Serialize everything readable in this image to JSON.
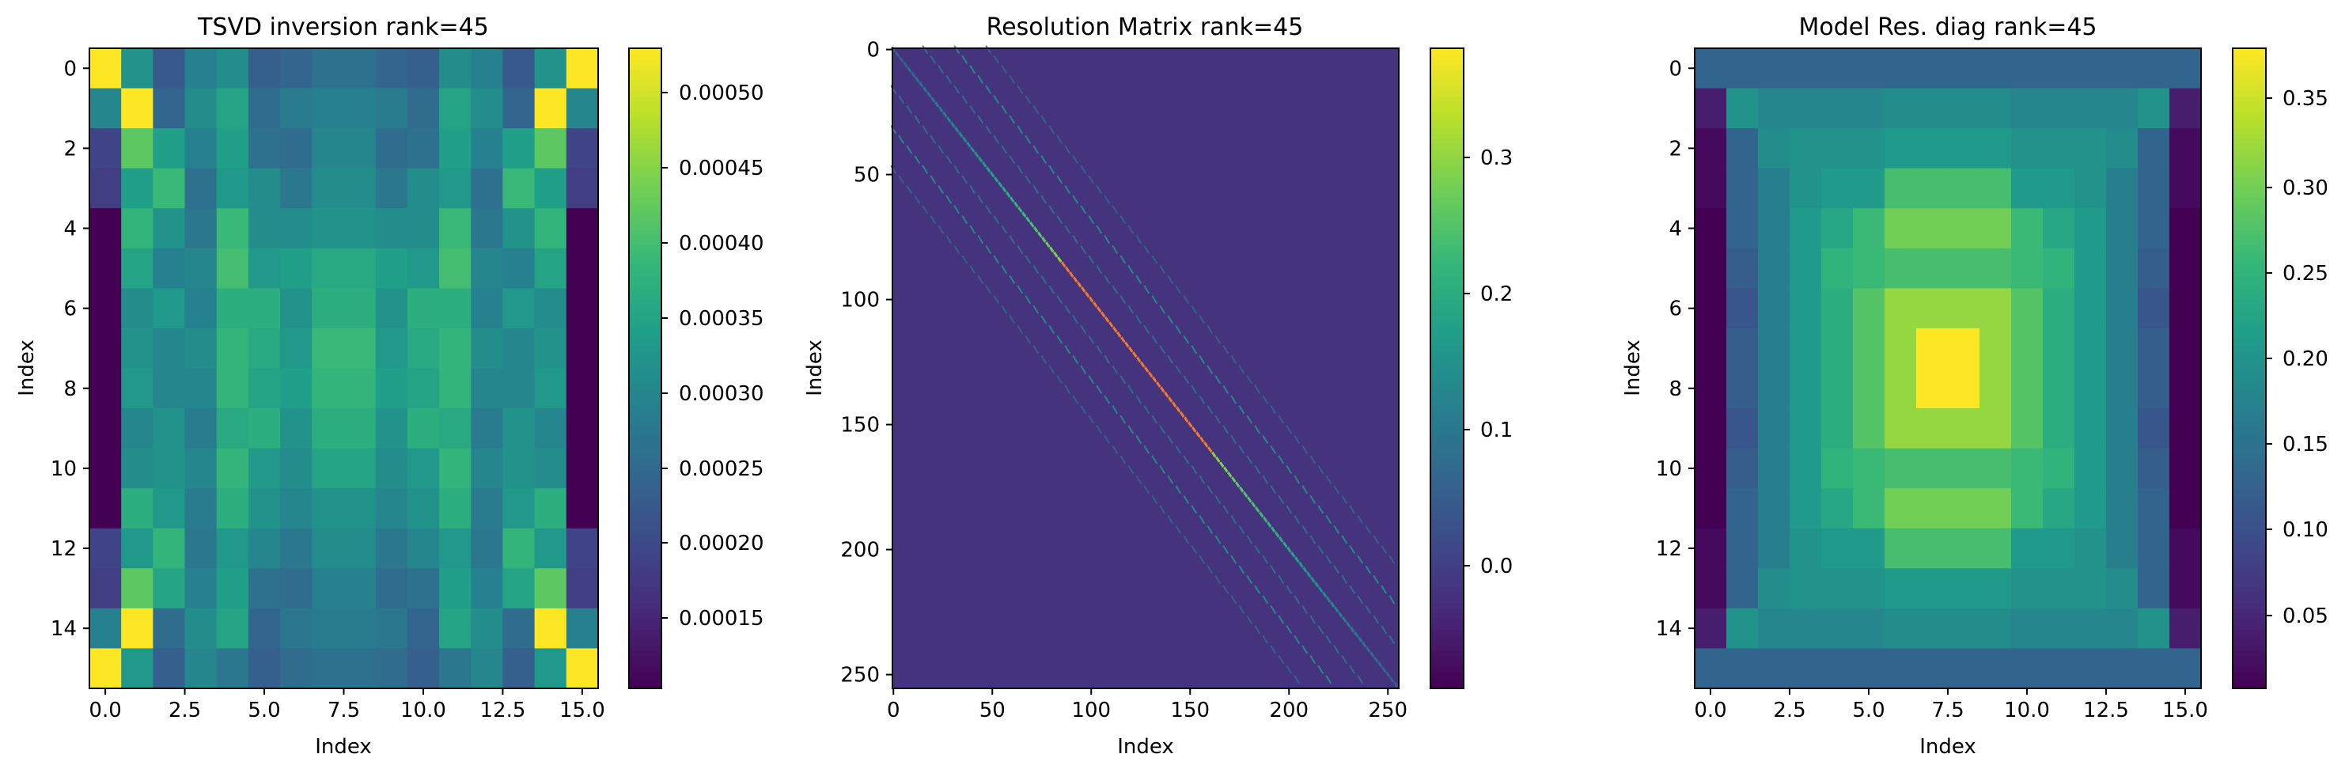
{
  "figure": {
    "panels": [
      {
        "title": "TSVD inversion rank=45",
        "xlabel": "Index",
        "ylabel": "Index",
        "colorbar_ticks": [
          "0.00050",
          "0.00045",
          "0.00040",
          "0.00035",
          "0.00030",
          "0.00025",
          "0.00020",
          "0.00015"
        ]
      },
      {
        "title": "Resolution Matrix rank=45",
        "xlabel": "Index",
        "ylabel": "Index",
        "colorbar_ticks": [
          "0.3",
          "0.2",
          "0.1",
          "0.0"
        ]
      },
      {
        "title": "Model Res. diag rank=45",
        "xlabel": "Index",
        "ylabel": "Index",
        "colorbar_ticks": [
          "0.35",
          "0.30",
          "0.25",
          "0.20",
          "0.15",
          "0.10",
          "0.05"
        ]
      }
    ]
  },
  "chart_data": [
    {
      "type": "heatmap",
      "title": "TSVD inversion rank=45",
      "xlabel": "Index",
      "ylabel": "Index",
      "shape": [
        16,
        16
      ],
      "xlim": [
        -0.5,
        15.5
      ],
      "ylim": [
        15.5,
        -0.5
      ],
      "xticks": [
        0.0,
        2.5,
        5.0,
        7.5,
        10.0,
        12.5,
        15.0
      ],
      "xtick_labels": [
        "0.0",
        "2.5",
        "5.0",
        "7.5",
        "10.0",
        "12.5",
        "15.0"
      ],
      "yticks": [
        0,
        2,
        4,
        6,
        8,
        10,
        12,
        14
      ],
      "ytick_labels": [
        "0",
        "2",
        "4",
        "6",
        "8",
        "10",
        "12",
        "14"
      ],
      "colormap": "viridis",
      "vmin": 0.0001,
      "vmax": 0.00053,
      "colorbar_ticks": [
        0.0005,
        0.00045,
        0.0004,
        0.00035,
        0.0003,
        0.00025,
        0.0002,
        0.00015
      ],
      "values": [
        [
          0.00053,
          0.00032,
          0.00022,
          0.00029,
          0.00031,
          0.00023,
          0.00024,
          0.00026,
          0.00026,
          0.00024,
          0.00023,
          0.00031,
          0.00029,
          0.00022,
          0.00032,
          0.00053
        ],
        [
          0.0003,
          0.00053,
          0.00024,
          0.00031,
          0.00035,
          0.00025,
          0.00028,
          0.00029,
          0.00029,
          0.00028,
          0.00025,
          0.00035,
          0.00031,
          0.00024,
          0.00053,
          0.0003
        ],
        [
          0.00019,
          0.00042,
          0.00034,
          0.00029,
          0.00034,
          0.00026,
          0.00025,
          0.0003,
          0.0003,
          0.00025,
          0.00026,
          0.00034,
          0.00029,
          0.00034,
          0.00042,
          0.00019
        ],
        [
          0.00018,
          0.00034,
          0.00039,
          0.00026,
          0.00033,
          0.00031,
          0.00027,
          0.00031,
          0.00031,
          0.00027,
          0.00031,
          0.00033,
          0.00026,
          0.00039,
          0.00034,
          0.00018
        ],
        [
          0.0001,
          0.00038,
          0.00032,
          0.00027,
          0.00039,
          0.00031,
          0.00031,
          0.00032,
          0.00032,
          0.00031,
          0.00031,
          0.00039,
          0.00027,
          0.00032,
          0.00038,
          0.0001
        ],
        [
          0.0001,
          0.00035,
          0.00029,
          0.0003,
          0.0004,
          0.00033,
          0.00034,
          0.00036,
          0.00036,
          0.00034,
          0.00033,
          0.0004,
          0.0003,
          0.00029,
          0.00035,
          0.0001
        ],
        [
          0.0001,
          0.00031,
          0.00033,
          0.00029,
          0.00037,
          0.00037,
          0.00032,
          0.00037,
          0.00037,
          0.00032,
          0.00037,
          0.00037,
          0.00029,
          0.00033,
          0.00031,
          0.0001
        ],
        [
          0.0001,
          0.00032,
          0.0003,
          0.00031,
          0.00038,
          0.00036,
          0.00033,
          0.00039,
          0.00039,
          0.00033,
          0.00036,
          0.00038,
          0.00031,
          0.0003,
          0.00032,
          0.0001
        ],
        [
          0.0001,
          0.00033,
          0.0003,
          0.0003,
          0.00038,
          0.00035,
          0.00034,
          0.00038,
          0.00038,
          0.00034,
          0.00035,
          0.00038,
          0.0003,
          0.0003,
          0.00033,
          0.0001
        ],
        [
          0.0001,
          0.0003,
          0.00032,
          0.00028,
          0.00036,
          0.00037,
          0.00032,
          0.00037,
          0.00037,
          0.00032,
          0.00037,
          0.00036,
          0.00028,
          0.00032,
          0.0003,
          0.0001
        ],
        [
          0.0001,
          0.00031,
          0.00032,
          0.0003,
          0.00038,
          0.00033,
          0.00031,
          0.00035,
          0.00035,
          0.00031,
          0.00033,
          0.00038,
          0.0003,
          0.00032,
          0.00031,
          0.0001
        ],
        [
          0.0001,
          0.00037,
          0.00033,
          0.00028,
          0.00037,
          0.00032,
          0.0003,
          0.00032,
          0.00032,
          0.0003,
          0.00032,
          0.00037,
          0.00028,
          0.00033,
          0.00037,
          0.0001
        ],
        [
          0.00019,
          0.00033,
          0.00038,
          0.00027,
          0.00033,
          0.0003,
          0.00027,
          0.00031,
          0.00031,
          0.00027,
          0.0003,
          0.00033,
          0.00027,
          0.00038,
          0.00033,
          0.00019
        ],
        [
          0.00018,
          0.00042,
          0.00035,
          0.00029,
          0.00034,
          0.00026,
          0.00025,
          0.00029,
          0.00029,
          0.00025,
          0.00026,
          0.00034,
          0.00029,
          0.00035,
          0.00042,
          0.00018
        ],
        [
          0.00029,
          0.00053,
          0.00025,
          0.00031,
          0.00035,
          0.00024,
          0.00027,
          0.00028,
          0.00028,
          0.00027,
          0.00024,
          0.00035,
          0.00031,
          0.00025,
          0.00053,
          0.00029
        ],
        [
          0.00053,
          0.00033,
          0.00023,
          0.0003,
          0.00027,
          0.00023,
          0.00025,
          0.00026,
          0.00026,
          0.00025,
          0.00023,
          0.00027,
          0.0003,
          0.00023,
          0.00033,
          0.00053
        ]
      ]
    },
    {
      "type": "heatmap",
      "title": "Resolution Matrix rank=45",
      "xlabel": "Index",
      "ylabel": "Index",
      "shape": [
        256,
        256
      ],
      "xlim": [
        -0.5,
        255.5
      ],
      "ylim": [
        255.5,
        -0.5
      ],
      "xticks": [
        0,
        50,
        100,
        150,
        200,
        250
      ],
      "yticks": [
        0,
        50,
        100,
        150,
        200,
        250
      ],
      "colormap": "viridis",
      "vmin": -0.09,
      "vmax": 0.38,
      "colorbar_ticks": [
        0.3,
        0.2,
        0.1,
        0.0
      ],
      "background_value": -0.02,
      "structure": {
        "main_diagonal_peak_values": [
          [
            0,
            0.05
          ],
          [
            30,
            0.12
          ],
          [
            64,
            0.22
          ],
          [
            100,
            0.36
          ],
          [
            128,
            0.38
          ],
          [
            150,
            0.33
          ],
          [
            190,
            0.22
          ],
          [
            224,
            0.12
          ],
          [
            255,
            0.05
          ]
        ],
        "off_diagonal_offsets_and_values": [
          [
            -32,
            0.16
          ],
          [
            -16,
            0.1
          ],
          [
            16,
            0.1
          ],
          [
            32,
            0.16
          ],
          [
            -48,
            0.07
          ],
          [
            48,
            0.07
          ]
        ]
      }
    },
    {
      "type": "heatmap",
      "title": "Model Res. diag rank=45",
      "xlabel": "Index",
      "ylabel": "Index",
      "shape": [
        16,
        16
      ],
      "xlim": [
        -0.5,
        15.5
      ],
      "ylim": [
        15.5,
        -0.5
      ],
      "xticks": [
        0.0,
        2.5,
        5.0,
        7.5,
        10.0,
        12.5,
        15.0
      ],
      "xtick_labels": [
        "0.0",
        "2.5",
        "5.0",
        "7.5",
        "10.0",
        "12.5",
        "15.0"
      ],
      "yticks": [
        0,
        2,
        4,
        6,
        8,
        10,
        12,
        14
      ],
      "ytick_labels": [
        "0",
        "2",
        "4",
        "6",
        "8",
        "10",
        "12",
        "14"
      ],
      "colormap": "viridis",
      "vmin": 0.01,
      "vmax": 0.38,
      "colorbar_ticks": [
        0.35,
        0.3,
        0.25,
        0.2,
        0.15,
        0.1,
        0.05
      ],
      "values": [
        [
          0.13,
          0.13,
          0.13,
          0.13,
          0.13,
          0.13,
          0.13,
          0.13,
          0.13,
          0.13,
          0.13,
          0.13,
          0.13,
          0.13,
          0.13,
          0.13
        ],
        [
          0.04,
          0.2,
          0.18,
          0.18,
          0.18,
          0.18,
          0.19,
          0.19,
          0.19,
          0.19,
          0.18,
          0.18,
          0.18,
          0.18,
          0.2,
          0.04
        ],
        [
          0.02,
          0.13,
          0.19,
          0.2,
          0.2,
          0.2,
          0.21,
          0.21,
          0.21,
          0.21,
          0.2,
          0.2,
          0.2,
          0.19,
          0.13,
          0.02
        ],
        [
          0.02,
          0.13,
          0.17,
          0.2,
          0.21,
          0.21,
          0.27,
          0.27,
          0.27,
          0.27,
          0.21,
          0.21,
          0.2,
          0.17,
          0.13,
          0.02
        ],
        [
          0.01,
          0.13,
          0.17,
          0.21,
          0.23,
          0.26,
          0.3,
          0.3,
          0.3,
          0.3,
          0.26,
          0.23,
          0.21,
          0.17,
          0.13,
          0.01
        ],
        [
          0.01,
          0.12,
          0.17,
          0.21,
          0.25,
          0.26,
          0.27,
          0.27,
          0.27,
          0.27,
          0.26,
          0.25,
          0.21,
          0.17,
          0.12,
          0.01
        ],
        [
          0.01,
          0.11,
          0.17,
          0.21,
          0.24,
          0.28,
          0.32,
          0.32,
          0.32,
          0.32,
          0.28,
          0.24,
          0.21,
          0.17,
          0.11,
          0.01
        ],
        [
          0.01,
          0.12,
          0.17,
          0.21,
          0.24,
          0.28,
          0.32,
          0.38,
          0.38,
          0.32,
          0.28,
          0.24,
          0.21,
          0.17,
          0.12,
          0.01
        ],
        [
          0.01,
          0.12,
          0.17,
          0.21,
          0.24,
          0.28,
          0.32,
          0.38,
          0.38,
          0.32,
          0.28,
          0.24,
          0.21,
          0.17,
          0.12,
          0.01
        ],
        [
          0.01,
          0.11,
          0.17,
          0.21,
          0.24,
          0.28,
          0.32,
          0.32,
          0.32,
          0.32,
          0.28,
          0.24,
          0.21,
          0.17,
          0.11,
          0.01
        ],
        [
          0.01,
          0.12,
          0.17,
          0.21,
          0.25,
          0.26,
          0.27,
          0.27,
          0.27,
          0.27,
          0.26,
          0.25,
          0.21,
          0.17,
          0.12,
          0.01
        ],
        [
          0.01,
          0.13,
          0.17,
          0.21,
          0.23,
          0.26,
          0.3,
          0.3,
          0.3,
          0.3,
          0.26,
          0.23,
          0.21,
          0.17,
          0.13,
          0.01
        ],
        [
          0.02,
          0.13,
          0.17,
          0.2,
          0.21,
          0.21,
          0.27,
          0.27,
          0.27,
          0.27,
          0.21,
          0.21,
          0.2,
          0.17,
          0.13,
          0.02
        ],
        [
          0.02,
          0.13,
          0.19,
          0.2,
          0.2,
          0.2,
          0.21,
          0.21,
          0.21,
          0.21,
          0.2,
          0.2,
          0.2,
          0.19,
          0.13,
          0.02
        ],
        [
          0.04,
          0.2,
          0.18,
          0.18,
          0.18,
          0.18,
          0.19,
          0.19,
          0.19,
          0.19,
          0.18,
          0.18,
          0.18,
          0.18,
          0.2,
          0.04
        ],
        [
          0.13,
          0.13,
          0.13,
          0.13,
          0.13,
          0.13,
          0.13,
          0.13,
          0.13,
          0.13,
          0.13,
          0.13,
          0.13,
          0.13,
          0.13,
          0.13
        ]
      ]
    }
  ]
}
